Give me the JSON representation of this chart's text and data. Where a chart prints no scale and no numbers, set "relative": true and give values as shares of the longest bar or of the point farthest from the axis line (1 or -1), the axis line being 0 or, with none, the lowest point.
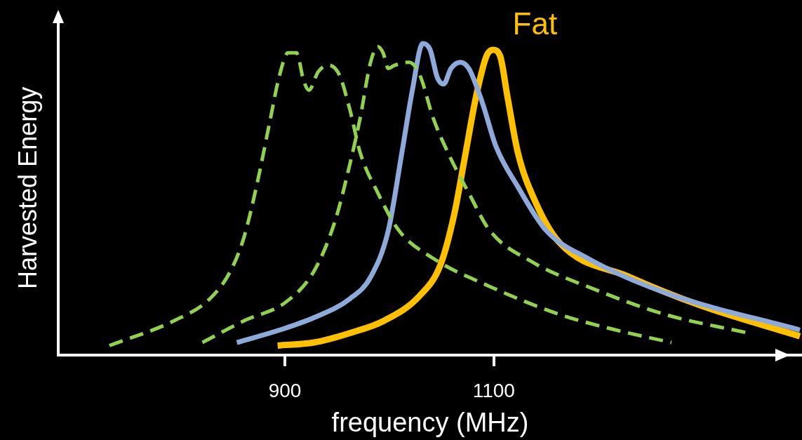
{
  "chart_data": {
    "type": "line",
    "xlabel": "frequency (MHz)",
    "ylabel": "Harvested Energy",
    "relative": true,
    "xlim": [
      683,
      1395
    ],
    "xticks": [
      900,
      1100
    ],
    "grid": false,
    "legend": false,
    "marker": "none",
    "series": [
      {
        "color": "#92d050",
        "line_style": "dashed",
        "x": [
          732,
          794,
          828,
          848,
          861,
          874,
          885,
          895,
          903,
          911,
          918,
          923,
          932,
          942,
          952,
          962,
          972,
          989,
          1009,
          1042,
          1096,
          1163,
          1217,
          1270
        ],
        "values": [
          0.03,
          0.11,
          0.18,
          0.27,
          0.38,
          0.56,
          0.74,
          0.9,
          0.97,
          0.97,
          0.88,
          0.85,
          0.91,
          0.93,
          0.9,
          0.79,
          0.65,
          0.52,
          0.4,
          0.31,
          0.22,
          0.13,
          0.08,
          0.04
        ]
      },
      {
        "color": "#92d050",
        "line_style": "dashed",
        "x": [
          821,
          861,
          901,
          928,
          948,
          962,
          972,
          982,
          989,
          994,
          999,
          1005,
          1019,
          1029,
          1042,
          1056,
          1076,
          1096,
          1136,
          1197,
          1264,
          1344
        ],
        "values": [
          0.04,
          0.11,
          0.17,
          0.27,
          0.43,
          0.61,
          0.76,
          0.94,
          0.99,
          0.97,
          0.92,
          0.93,
          0.94,
          0.9,
          0.76,
          0.65,
          0.52,
          0.4,
          0.3,
          0.21,
          0.13,
          0.07
        ]
      },
      {
        "color": "#8eaadb",
        "line_style": "solid",
        "x": [
          854,
          895,
          928,
          962,
          982,
          999,
          1012,
          1022,
          1032,
          1039,
          1046,
          1052,
          1059,
          1068,
          1076,
          1089,
          1102,
          1123,
          1150,
          1190,
          1264,
          1393
        ],
        "values": [
          0.04,
          0.08,
          0.12,
          0.18,
          0.25,
          0.4,
          0.65,
          0.85,
          1,
          0.98,
          0.89,
          0.87,
          0.92,
          0.94,
          0.92,
          0.81,
          0.67,
          0.54,
          0.4,
          0.31,
          0.2,
          0.08
        ]
      },
      {
        "name": "Fat",
        "color": "#ffc000",
        "line_style": "solid",
        "x": [
          893,
          928,
          962,
          995,
          1029,
          1049,
          1062,
          1072,
          1083,
          1093,
          1099,
          1106,
          1113,
          1123,
          1140,
          1163,
          1230,
          1297,
          1393
        ],
        "values": [
          0.03,
          0.04,
          0.07,
          0.11,
          0.19,
          0.29,
          0.45,
          0.63,
          0.83,
          0.96,
          0.98,
          0.96,
          0.83,
          0.65,
          0.49,
          0.36,
          0.25,
          0.16,
          0.06
        ]
      }
    ]
  }
}
